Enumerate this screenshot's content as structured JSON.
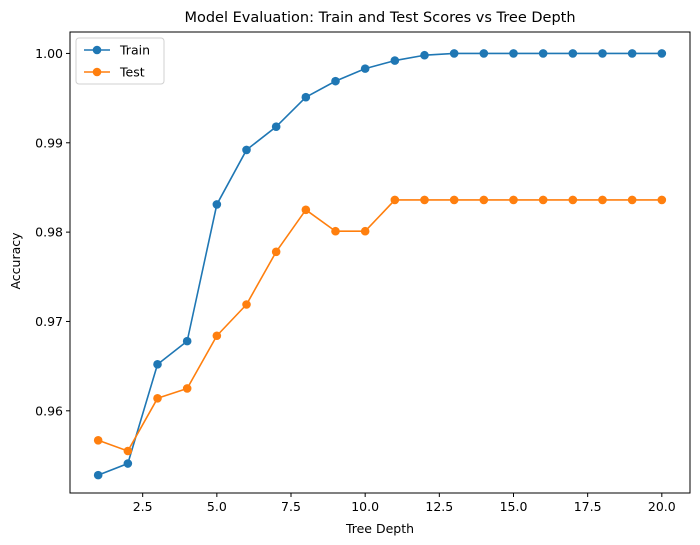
{
  "chart_data": {
    "type": "line",
    "title": "Model Evaluation: Train and Test Scores vs Tree Depth",
    "xlabel": "Tree Depth",
    "ylabel": "Accuracy",
    "xlim": [
      0.05,
      20.95
    ],
    "ylim": [
      0.9508,
      1.0024
    ],
    "x_ticks": [
      2.5,
      5.0,
      7.5,
      10.0,
      12.5,
      15.0,
      17.5,
      20.0
    ],
    "x_tick_labels": [
      "2.5",
      "5.0",
      "7.5",
      "10.0",
      "12.5",
      "15.0",
      "17.5",
      "20.0"
    ],
    "y_ticks": [
      0.96,
      0.97,
      0.98,
      0.99,
      1.0
    ],
    "y_tick_labels": [
      "0.96",
      "0.97",
      "0.98",
      "0.99",
      "1.00"
    ],
    "grid": false,
    "legend_position": "top-left",
    "x": [
      1,
      2,
      3,
      4,
      5,
      6,
      7,
      8,
      9,
      10,
      11,
      12,
      13,
      14,
      15,
      16,
      17,
      18,
      19,
      20
    ],
    "series": [
      {
        "name": "Train",
        "color": "#1f77b4",
        "marker": "circle",
        "values": [
          0.9528,
          0.9541,
          0.9652,
          0.9678,
          0.9831,
          0.9892,
          0.9918,
          0.9951,
          0.9969,
          0.9983,
          0.9992,
          0.9998,
          1.0,
          1.0,
          1.0,
          1.0,
          1.0,
          1.0,
          1.0,
          1.0
        ]
      },
      {
        "name": "Test",
        "color": "#ff7f0e",
        "marker": "circle",
        "values": [
          0.9567,
          0.9555,
          0.9614,
          0.9625,
          0.9684,
          0.9719,
          0.9778,
          0.9825,
          0.9801,
          0.9801,
          0.9836,
          0.9836,
          0.9836,
          0.9836,
          0.9836,
          0.9836,
          0.9836,
          0.9836,
          0.9836,
          0.9836
        ]
      }
    ]
  }
}
